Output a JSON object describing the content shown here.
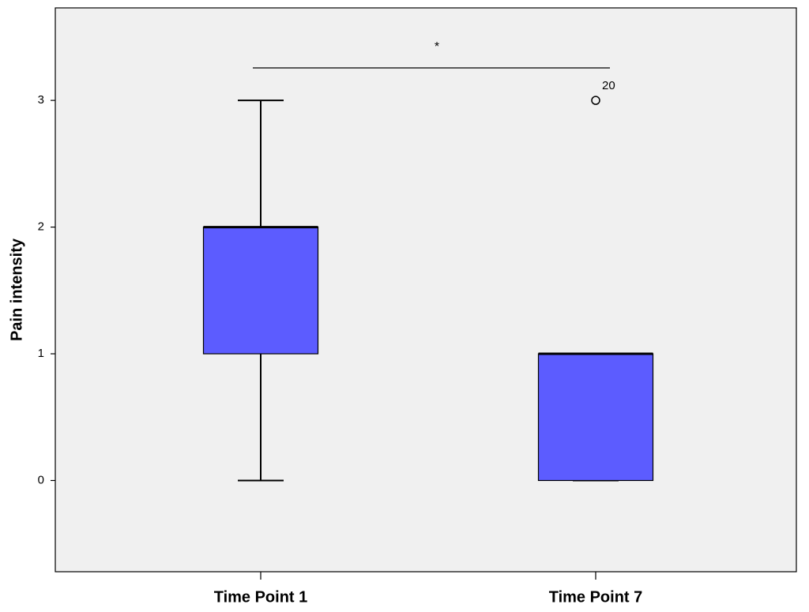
{
  "chart_data": {
    "type": "box",
    "ylabel": "Pain intensity",
    "categories": [
      "Time Point 1",
      "Time Point 7"
    ],
    "min": [
      0,
      0
    ],
    "q1": [
      1,
      0
    ],
    "median": [
      2,
      1
    ],
    "q3": [
      2,
      1
    ],
    "max": [
      3,
      1
    ],
    "outliers": [
      [],
      [
        3
      ]
    ],
    "outlier_labels": [
      [],
      [
        "20"
      ]
    ],
    "annotation": "*",
    "color": "#5c5cff",
    "background": "#f0f0f0",
    "ylim": [
      -0.72,
      3.73
    ],
    "yticks": [
      0,
      1,
      2,
      3
    ],
    "grid": false
  }
}
